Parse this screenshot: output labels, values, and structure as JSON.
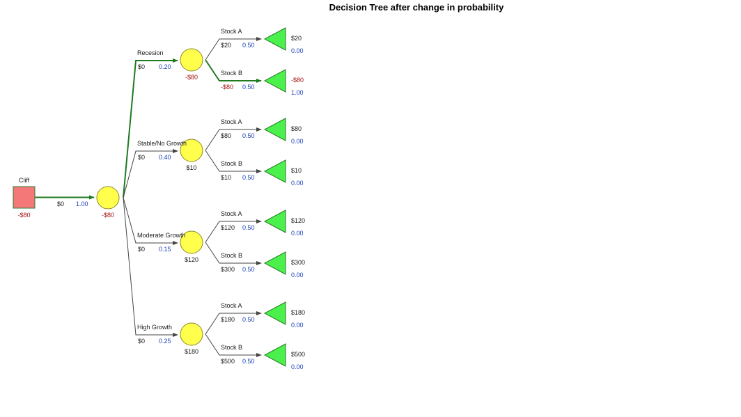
{
  "title": "Decision Tree after change in probability",
  "colors": {
    "decision_fill": "#f47878",
    "decision_stroke": "#2e7d32",
    "chance_fill": "#ffff4c",
    "chance_stroke": "#8a8a2a",
    "terminal_fill": "#4cf04c",
    "terminal_stroke": "#237a23",
    "optimal_path": "#1f7a1f",
    "normal_path": "#444444",
    "negative_value": "#a51212",
    "probability": "#1a3fb8"
  },
  "root": {
    "name": "Cliff",
    "value": "-$80",
    "branch": {
      "payoff": "$0",
      "probability": "1.00"
    },
    "chance": {
      "value": "-$80",
      "branches": [
        {
          "name": "Recesion",
          "payoff": "$0",
          "probability": "0.20",
          "node_value": "-$80",
          "optimal": true,
          "outcomes": [
            {
              "name": "Stock A",
              "payoff": "$20",
              "probability": "0.50",
              "end_value": "$20",
              "end_prob": "0.00",
              "optimal": false
            },
            {
              "name": "Stock B",
              "payoff": "-$80",
              "probability": "0.50",
              "end_value": "-$80",
              "end_prob": "1.00",
              "optimal": true
            }
          ]
        },
        {
          "name": "Stable/No Growth",
          "payoff": "$0",
          "probability": "0.40",
          "node_value": "$10",
          "optimal": false,
          "outcomes": [
            {
              "name": "Stock A",
              "payoff": "$80",
              "probability": "0.50",
              "end_value": "$80",
              "end_prob": "0.00",
              "optimal": false
            },
            {
              "name": "Stock B",
              "payoff": "$10",
              "probability": "0.50",
              "end_value": "$10",
              "end_prob": "0.00",
              "optimal": false
            }
          ]
        },
        {
          "name": "Moderate Growth",
          "payoff": "$0",
          "probability": "0.15",
          "node_value": "$120",
          "optimal": false,
          "outcomes": [
            {
              "name": "Stock A",
              "payoff": "$120",
              "probability": "0.50",
              "end_value": "$120",
              "end_prob": "0.00",
              "optimal": false
            },
            {
              "name": "Stock B",
              "payoff": "$300",
              "probability": "0.50",
              "end_value": "$300",
              "end_prob": "0.00",
              "optimal": false
            }
          ]
        },
        {
          "name": "High Growth",
          "payoff": "$0",
          "probability": "0.25",
          "node_value": "$180",
          "optimal": false,
          "outcomes": [
            {
              "name": "Stock A",
              "payoff": "$180",
              "probability": "0.50",
              "end_value": "$180",
              "end_prob": "0.00",
              "optimal": false
            },
            {
              "name": "Stock B",
              "payoff": "$500",
              "probability": "0.50",
              "end_value": "$500",
              "end_prob": "0.00",
              "optimal": false
            }
          ]
        }
      ]
    }
  }
}
